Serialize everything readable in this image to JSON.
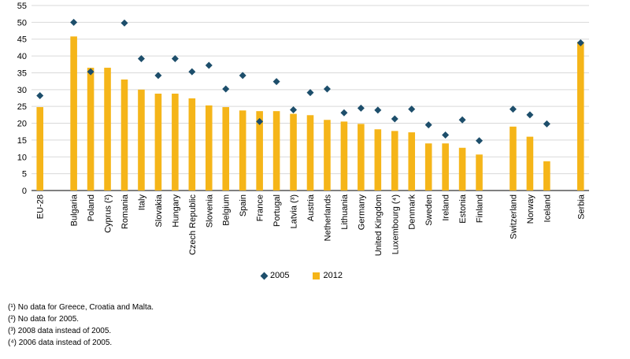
{
  "chart_data": {
    "type": "bar",
    "title": "",
    "xlabel": "",
    "ylabel": "",
    "ylim": [
      0,
      55
    ],
    "yticks": [
      0,
      5,
      10,
      15,
      20,
      25,
      30,
      35,
      40,
      45,
      50,
      55
    ],
    "grid": true,
    "legend_position": "bottom",
    "categories": [
      "EU-28",
      "Bulgaria",
      "Poland",
      "Cyprus (²)",
      "Romania",
      "Italy",
      "Slovakia",
      "Hungary",
      "Czech Republic",
      "Slovenia",
      "Belgium",
      "Spain",
      "France",
      "Portugal",
      "Latvia (³)",
      "Austria",
      "Netherlands",
      "Lithuania",
      "Germany",
      "United Kingdom",
      "Luxembourg (⁴)",
      "Denmark",
      "Sweden",
      "Ireland",
      "Estonia",
      "Finland",
      "Switzerland",
      "Norway",
      "Iceland",
      "Serbia"
    ],
    "groups": [
      [
        0
      ],
      [
        1,
        2,
        3,
        4,
        5,
        6,
        7,
        8,
        9,
        10,
        11,
        12,
        13,
        14,
        15,
        16,
        17,
        18,
        19,
        20,
        21,
        22,
        23,
        24,
        25
      ],
      [
        26,
        27,
        28
      ],
      [
        29
      ]
    ],
    "series": [
      {
        "name": "2005",
        "marker": "diamond",
        "color": "#1d4e6b",
        "values": [
          28.2,
          50,
          35.3,
          null,
          49.8,
          39.2,
          34.2,
          39.2,
          35.3,
          37.2,
          30.2,
          34.2,
          20.5,
          32.4,
          24,
          29.1,
          30.2,
          23.1,
          24.5,
          23.9,
          21.3,
          24.2,
          19.5,
          16.5,
          21,
          14.8,
          24.2,
          22.5,
          19.8,
          43.9
        ]
      },
      {
        "name": "2012",
        "marker": "bar",
        "color": "#f5b519",
        "values": [
          24.8,
          45.8,
          36.5,
          36.5,
          33,
          30,
          28.8,
          28.8,
          27.4,
          25.3,
          24.8,
          23.8,
          23.6,
          23.6,
          22.8,
          22.4,
          21,
          20.5,
          19.8,
          18.2,
          17.7,
          17.3,
          14,
          14,
          12.7,
          10.7,
          19,
          16,
          8.7,
          44.2
        ]
      }
    ]
  },
  "notes": [
    "(¹) No data for Greece, Croatia and Malta.",
    "(²) No data for 2005.",
    "(³) 2008 data instead of 2005.",
    "(⁴) 2006 data instead of 2005."
  ]
}
